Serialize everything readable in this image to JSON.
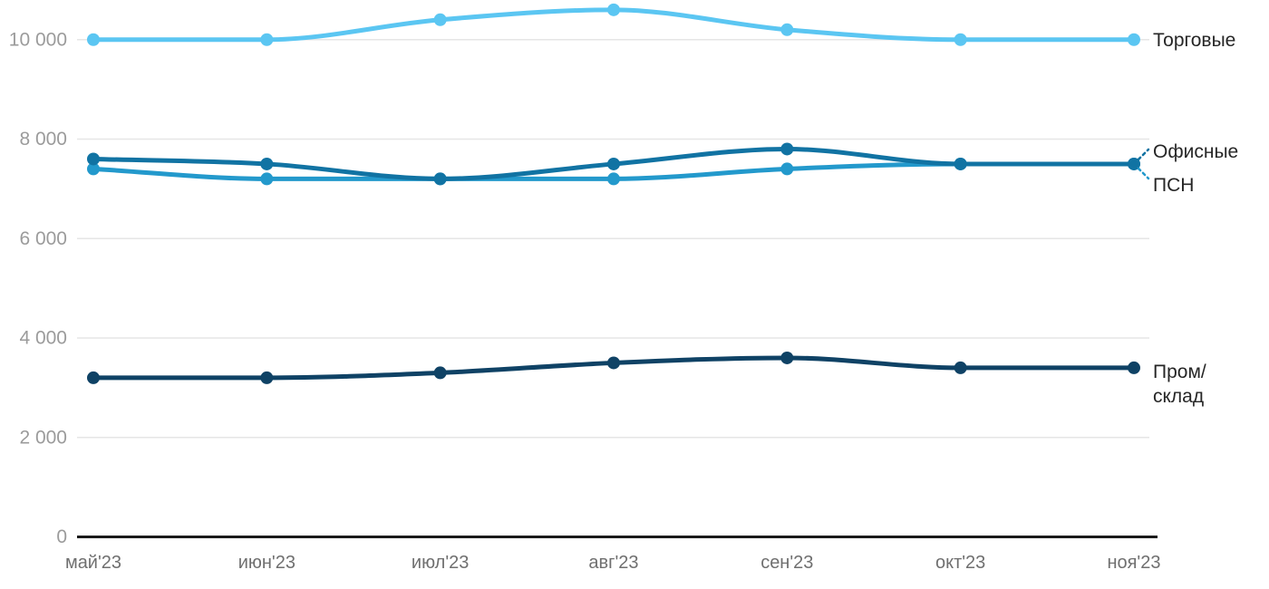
{
  "chart_data": {
    "type": "line",
    "title": "",
    "categories": [
      "май'23",
      "июн'23",
      "июл'23",
      "авг'23",
      "сен'23",
      "окт'23",
      "ноя'23"
    ],
    "series": [
      {
        "name": "Торговые",
        "slug": "retail",
        "color": "#5BC6F2",
        "values": [
          10000,
          10000,
          10400,
          10600,
          10200,
          10000,
          10000
        ],
        "label_lines": [
          "Торговые"
        ],
        "leader": false,
        "label_dy": 0
      },
      {
        "name": "Офисные",
        "slug": "office",
        "color": "#1173A3",
        "values": [
          7600,
          7500,
          7200,
          7500,
          7800,
          7500,
          7500
        ],
        "label_lines": [
          "Офисные"
        ],
        "leader": "up",
        "label_dy": -14
      },
      {
        "name": "ПСН",
        "slug": "psn",
        "color": "#2399CC",
        "values": [
          7400,
          7200,
          7200,
          7200,
          7400,
          7500,
          7500
        ],
        "label_lines": [
          "ПСН"
        ],
        "leader": "down",
        "label_dy": 23
      },
      {
        "name": "Пром/склад",
        "slug": "industrial-warehouse",
        "color": "#0F4265",
        "values": [
          3200,
          3200,
          3300,
          3500,
          3600,
          3400,
          3400
        ],
        "label_lines": [
          "Пром/",
          "склад"
        ],
        "leader": false,
        "label_dy": 4
      }
    ],
    "yticks": [
      0,
      2000,
      4000,
      6000,
      8000,
      10000
    ],
    "ytick_labels": [
      "0",
      "2 000",
      "4 000",
      "6 000",
      "8 000",
      "10 000"
    ],
    "ylim": [
      0,
      10800
    ],
    "xlabel": "",
    "ylabel": "",
    "grid": "horizontal",
    "legend_position": "right-inline-labels"
  },
  "styles": {
    "background": "#ffffff",
    "grid_color": "#e6e6e6",
    "axis_color": "#1a1a1a",
    "ytick_color": "#9b9b9b",
    "xtick_color": "#6f6f6f",
    "series_label_color": "#262626"
  }
}
